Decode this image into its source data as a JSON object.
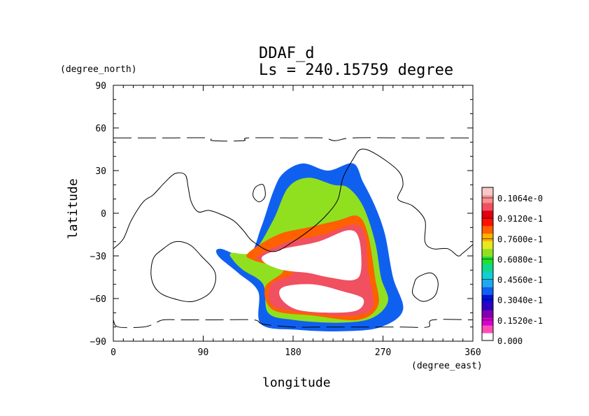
{
  "chart_data": {
    "type": "heatmap",
    "title": "DDAF_d",
    "subtitle": "Ls = 240.15759 degree",
    "xlabel": "longitude",
    "ylabel": "latitude",
    "x_units": "(degree_east)",
    "y_units": "(degree_north)",
    "xlim": [
      0,
      360
    ],
    "ylim": [
      -90,
      90
    ],
    "x_ticks": [
      "0",
      "90",
      "180",
      "270",
      "360"
    ],
    "y_ticks": [
      "90",
      "60",
      "30",
      "0",
      "−30",
      "−60",
      "−90"
    ],
    "colorbar": {
      "labels": [
        "0.000",
        "0.1520e-1",
        "0.3040e-1",
        "0.4560e-1",
        "0.6080e-1",
        "0.7600e-1",
        "0.9120e-1",
        "0.1064e-0"
      ],
      "colors": [
        "#ffffff",
        "#ff4fb4",
        "#d800d0",
        "#8000b0",
        "#3000c0",
        "#0010d8",
        "#1060f0",
        "#20a8f0",
        "#10d0d0",
        "#10d890",
        "#20e030",
        "#90e020",
        "#e8e820",
        "#ffb000",
        "#ff6000",
        "#ff1000",
        "#e00010",
        "#f05060",
        "#f89090",
        "#f8c8c8"
      ]
    },
    "blobs": [
      {
        "level": 6,
        "points": [
          [
            107,
            -25
          ],
          [
            135,
            -30
          ],
          [
            148,
            -10
          ],
          [
            160,
            15
          ],
          [
            170,
            28
          ],
          [
            190,
            35
          ],
          [
            215,
            30
          ],
          [
            240,
            35
          ],
          [
            250,
            22
          ],
          [
            262,
            5
          ],
          [
            272,
            -15
          ],
          [
            280,
            -45
          ],
          [
            290,
            -68
          ],
          [
            268,
            -80
          ],
          [
            230,
            -83
          ],
          [
            185,
            -82
          ],
          [
            148,
            -78
          ],
          [
            145,
            -55
          ],
          [
            125,
            -42
          ],
          [
            105,
            -30
          ]
        ]
      },
      {
        "level": 11,
        "points": [
          [
            118,
            -28
          ],
          [
            140,
            -27
          ],
          [
            160,
            -5
          ],
          [
            175,
            18
          ],
          [
            195,
            25
          ],
          [
            220,
            20
          ],
          [
            235,
            18
          ],
          [
            250,
            5
          ],
          [
            262,
            -20
          ],
          [
            268,
            -45
          ],
          [
            275,
            -62
          ],
          [
            258,
            -74
          ],
          [
            225,
            -77
          ],
          [
            180,
            -75
          ],
          [
            155,
            -70
          ],
          [
            150,
            -50
          ],
          [
            130,
            -40
          ],
          [
            120,
            -33
          ]
        ]
      },
      {
        "level": 14,
        "points": [
          [
            135,
            -28
          ],
          [
            165,
            -15
          ],
          [
            195,
            -10
          ],
          [
            225,
            -5
          ],
          [
            245,
            -2
          ],
          [
            255,
            -15
          ],
          [
            262,
            -45
          ],
          [
            265,
            -65
          ],
          [
            245,
            -75
          ],
          [
            200,
            -72
          ],
          [
            160,
            -68
          ],
          [
            152,
            -52
          ],
          [
            170,
            -40
          ],
          [
            140,
            -33
          ]
        ]
      },
      {
        "level": 17,
        "points": [
          [
            145,
            -30
          ],
          [
            175,
            -20
          ],
          [
            210,
            -15
          ],
          [
            240,
            -8
          ],
          [
            252,
            -15
          ],
          [
            255,
            -40
          ],
          [
            260,
            -65
          ],
          [
            240,
            -72
          ],
          [
            195,
            -70
          ],
          [
            160,
            -65
          ],
          [
            158,
            -50
          ],
          [
            180,
            -42
          ],
          [
            150,
            -34
          ]
        ]
      },
      {
        "level": 0,
        "points": [
          [
            150,
            -30
          ],
          [
            170,
            -25
          ],
          [
            205,
            -20
          ],
          [
            235,
            -12
          ],
          [
            246,
            -18
          ],
          [
            248,
            -40
          ],
          [
            240,
            -47
          ],
          [
            215,
            -45
          ],
          [
            195,
            -42
          ],
          [
            170,
            -40
          ],
          [
            152,
            -35
          ]
        ]
      },
      {
        "level": 0,
        "points": [
          [
            170,
            -52
          ],
          [
            200,
            -50
          ],
          [
            230,
            -55
          ],
          [
            250,
            -60
          ],
          [
            245,
            -68
          ],
          [
            220,
            -70
          ],
          [
            185,
            -68
          ],
          [
            168,
            -60
          ]
        ]
      }
    ],
    "contours": [
      {
        "style": "solid",
        "points": [
          [
            0,
            -25
          ],
          [
            10,
            -18
          ],
          [
            18,
            -5
          ],
          [
            30,
            8
          ],
          [
            40,
            13
          ],
          [
            52,
            22
          ],
          [
            62,
            28
          ],
          [
            72,
            27
          ],
          [
            75,
            18
          ],
          [
            78,
            8
          ],
          [
            85,
            1
          ],
          [
            95,
            2
          ],
          [
            105,
            0
          ],
          [
            120,
            -5
          ],
          [
            130,
            -12
          ],
          [
            140,
            -20
          ],
          [
            160,
            -27
          ],
          [
            180,
            -20
          ],
          [
            200,
            -10
          ],
          [
            215,
            0
          ],
          [
            225,
            10
          ],
          [
            230,
            25
          ],
          [
            240,
            38
          ],
          [
            248,
            45
          ],
          [
            262,
            42
          ],
          [
            285,
            30
          ],
          [
            290,
            20
          ],
          [
            285,
            10
          ],
          [
            300,
            5
          ],
          [
            312,
            -5
          ],
          [
            312,
            -20
          ],
          [
            320,
            -25
          ],
          [
            335,
            -25
          ],
          [
            345,
            -30
          ],
          [
            350,
            -28
          ],
          [
            360,
            -22
          ]
        ]
      },
      {
        "style": "solid",
        "points": [
          [
            62,
            -20
          ],
          [
            76,
            -22
          ],
          [
            88,
            -30
          ],
          [
            102,
            -42
          ],
          [
            98,
            -55
          ],
          [
            80,
            -62
          ],
          [
            60,
            -60
          ],
          [
            45,
            -55
          ],
          [
            38,
            -45
          ],
          [
            40,
            -32
          ],
          [
            50,
            -25
          ]
        ]
      },
      {
        "style": "solid",
        "points": [
          [
            305,
            -45
          ],
          [
            318,
            -42
          ],
          [
            325,
            -48
          ],
          [
            322,
            -58
          ],
          [
            310,
            -62
          ],
          [
            300,
            -57
          ],
          [
            301,
            -50
          ]
        ]
      },
      {
        "style": "solid",
        "points": [
          [
            142,
            18
          ],
          [
            150,
            20
          ],
          [
            152,
            12
          ],
          [
            146,
            8
          ],
          [
            140,
            12
          ]
        ]
      },
      {
        "style": "dashed",
        "points": [
          [
            0,
            53
          ],
          [
            20,
            53
          ],
          [
            60,
            53
          ],
          [
            95,
            53
          ],
          [
            100,
            51
          ],
          [
            130,
            51
          ],
          [
            135,
            53
          ],
          [
            180,
            53
          ],
          [
            210,
            53
          ],
          [
            222,
            51
          ],
          [
            240,
            53
          ],
          [
            300,
            53
          ],
          [
            360,
            53
          ]
        ]
      },
      {
        "style": "dashed",
        "points": [
          [
            0,
            -75
          ],
          [
            5,
            -80
          ],
          [
            30,
            -80
          ],
          [
            40,
            -78
          ],
          [
            50,
            -75
          ],
          [
            70,
            -75
          ],
          [
            100,
            -75
          ],
          [
            140,
            -75
          ],
          [
            150,
            -78
          ],
          [
            180,
            -80
          ],
          [
            210,
            -80
          ],
          [
            250,
            -80
          ],
          [
            270,
            -80
          ],
          [
            290,
            -80
          ],
          [
            315,
            -80
          ],
          [
            320,
            -75
          ],
          [
            360,
            -75
          ]
        ]
      }
    ]
  }
}
